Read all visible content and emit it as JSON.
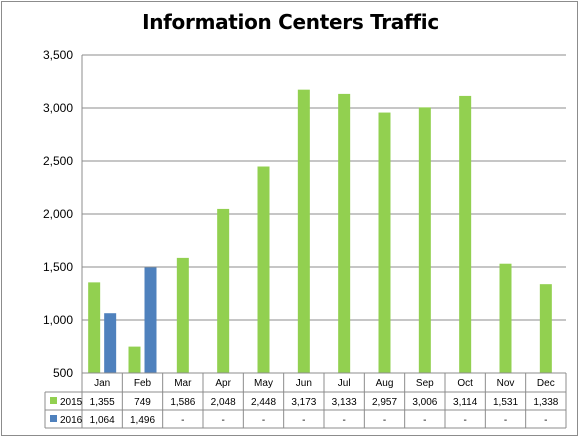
{
  "chart_data": {
    "type": "bar",
    "title": "Information Centers Traffic",
    "categories": [
      "Jan",
      "Feb",
      "Mar",
      "Apr",
      "May",
      "Jun",
      "Jul",
      "Aug",
      "Sep",
      "Oct",
      "Nov",
      "Dec"
    ],
    "series": [
      {
        "name": "2015",
        "color": "#92d050",
        "values": [
          1355,
          749,
          1586,
          2048,
          2448,
          3173,
          3133,
          2957,
          3006,
          3114,
          1531,
          1338
        ],
        "labels": [
          "1,355",
          "749",
          "1,586",
          "2,048",
          "2,448",
          "3,173",
          "3,133",
          "2,957",
          "3,006",
          "3,114",
          "1,531",
          "1,338"
        ]
      },
      {
        "name": "2016",
        "color": "#4f81bd",
        "values": [
          1064,
          1496,
          null,
          null,
          null,
          null,
          null,
          null,
          null,
          null,
          null,
          null
        ],
        "labels": [
          "1,064",
          "1,496",
          "-",
          "-",
          "-",
          "-",
          "-",
          "-",
          "-",
          "-",
          "-",
          "-"
        ]
      }
    ],
    "ylim": [
      500,
      3500
    ],
    "yticks": [
      500,
      1000,
      1500,
      2000,
      2500,
      3000,
      3500
    ],
    "ytick_labels": [
      "500",
      "1,000",
      "1,500",
      "2,000",
      "2,500",
      "3,000",
      "3,500"
    ],
    "grid": true,
    "legend": "data table",
    "xlabel": "",
    "ylabel": ""
  }
}
